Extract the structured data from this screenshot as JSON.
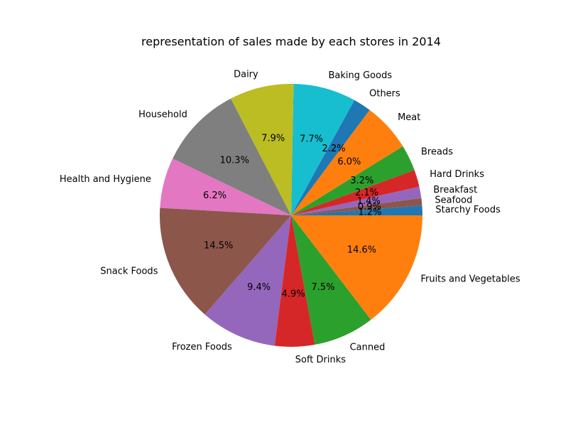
{
  "chart_data": {
    "type": "pie",
    "title": "representation of sales made by each stores in 2014",
    "legend": "none",
    "slices": [
      {
        "name": "Starchy Foods",
        "value": 1.2,
        "label": "1.2%",
        "color": "#1f77b4"
      },
      {
        "name": "Seafood",
        "value": 0.9,
        "label": "0.9%",
        "color": "#8c564b"
      },
      {
        "name": "Breakfast",
        "value": 1.4,
        "label": "1.4%",
        "color": "#9467bd"
      },
      {
        "name": "Hard Drinks",
        "value": 2.1,
        "label": "2.1%",
        "color": "#d62728"
      },
      {
        "name": "Breads",
        "value": 3.2,
        "label": "3.2%",
        "color": "#2ca02c"
      },
      {
        "name": "Meat",
        "value": 6.0,
        "label": "6.0%",
        "color": "#ff7f0e"
      },
      {
        "name": "Others",
        "value": 2.2,
        "label": "2.2%",
        "color": "#1f77b4"
      },
      {
        "name": "Baking Goods",
        "value": 7.7,
        "label": "7.7%",
        "color": "#17becf"
      },
      {
        "name": "Dairy",
        "value": 7.9,
        "label": "7.9%",
        "color": "#bcbd22"
      },
      {
        "name": "Household",
        "value": 10.3,
        "label": "10.3%",
        "color": "#7f7f7f"
      },
      {
        "name": "Health and Hygiene",
        "value": 6.2,
        "label": "6.2%",
        "color": "#e377c2"
      },
      {
        "name": "Snack Foods",
        "value": 14.5,
        "label": "14.5%",
        "color": "#8c564b"
      },
      {
        "name": "Frozen Foods",
        "value": 9.4,
        "label": "9.4%",
        "color": "#9467bd"
      },
      {
        "name": "Soft Drinks",
        "value": 4.9,
        "label": "4.9%",
        "color": "#d62728"
      },
      {
        "name": "Canned",
        "value": 7.5,
        "label": "7.5%",
        "color": "#2ca02c"
      },
      {
        "name": "Fruits and Vegetables",
        "value": 14.6,
        "label": "14.6%",
        "color": "#ff7f0e"
      }
    ]
  }
}
